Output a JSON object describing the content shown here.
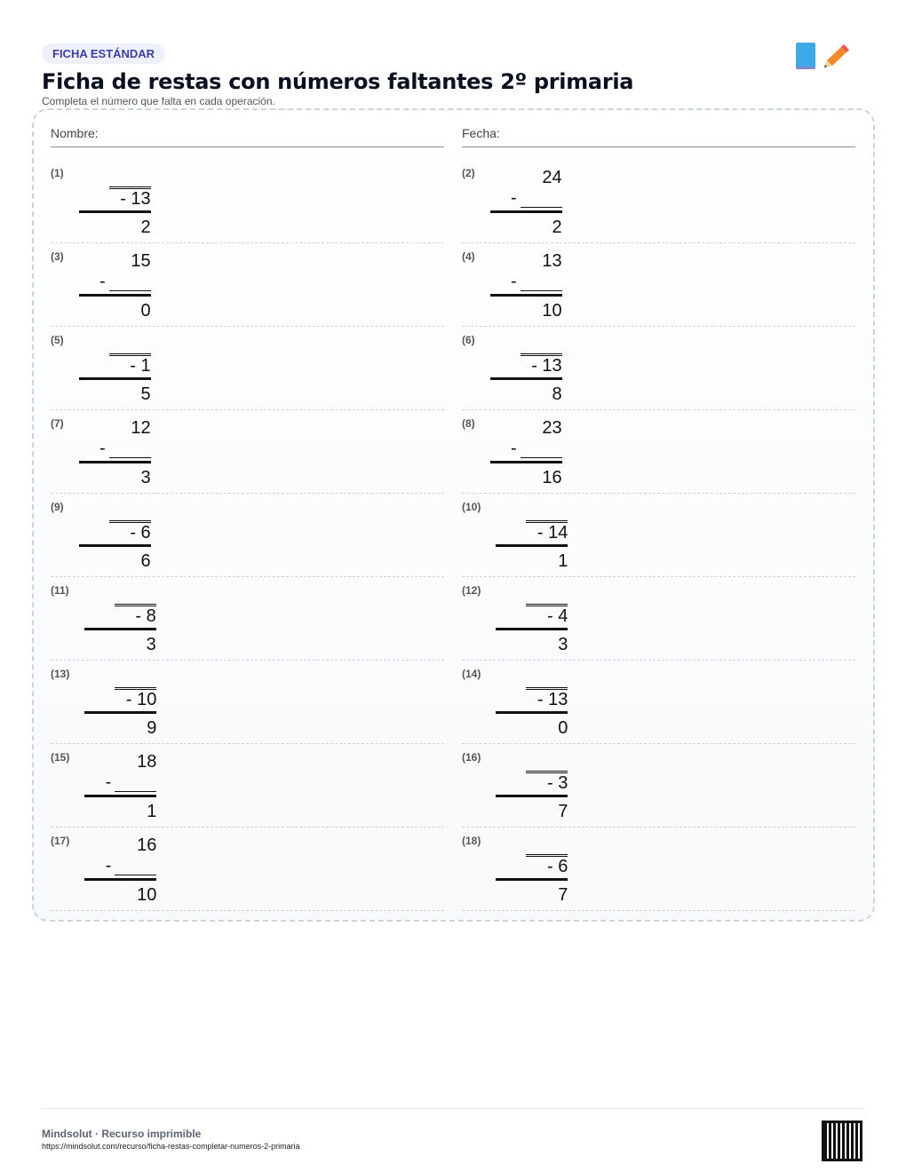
{
  "header": {
    "badge": "FICHA ESTÁNDAR",
    "title": "Ficha de restas con números faltantes 2º primaria",
    "subtitle": "Completa el número que falta en cada operación.",
    "icons": [
      "book-icon",
      "pencil-icon"
    ]
  },
  "fields": {
    "name_label": "Nombre:",
    "date_label": "Fecha:"
  },
  "problems": [
    {
      "label": "(1)",
      "top": null,
      "sub": "13",
      "res": "2"
    },
    {
      "label": "(2)",
      "top": "24",
      "sub": null,
      "res": "2"
    },
    {
      "label": "(3)",
      "top": "15",
      "sub": null,
      "res": "0"
    },
    {
      "label": "(4)",
      "top": "13",
      "sub": null,
      "res": "10"
    },
    {
      "label": "(5)",
      "top": null,
      "sub": "1",
      "res": "5"
    },
    {
      "label": "(6)",
      "top": null,
      "sub": "13",
      "res": "8"
    },
    {
      "label": "(7)",
      "top": "12",
      "sub": null,
      "res": "3"
    },
    {
      "label": "(8)",
      "top": "23",
      "sub": null,
      "res": "16"
    },
    {
      "label": "(9)",
      "top": null,
      "sub": "6",
      "res": "6"
    },
    {
      "label": "(10)",
      "top": null,
      "sub": "14",
      "res": "1"
    },
    {
      "label": "(11)",
      "top": null,
      "sub": "8",
      "res": "3"
    },
    {
      "label": "(12)",
      "top": null,
      "sub": "4",
      "res": "3"
    },
    {
      "label": "(13)",
      "top": null,
      "sub": "10",
      "res": "9"
    },
    {
      "label": "(14)",
      "top": null,
      "sub": "13",
      "res": "0"
    },
    {
      "label": "(15)",
      "top": "18",
      "sub": null,
      "res": "1"
    },
    {
      "label": "(16)",
      "top": null,
      "sub": "3",
      "res": "7"
    },
    {
      "label": "(17)",
      "top": "16",
      "sub": null,
      "res": "10"
    },
    {
      "label": "(18)",
      "top": null,
      "sub": "6",
      "res": "7"
    }
  ],
  "footer": {
    "brand": "Mindsolut · Recurso imprimible",
    "url": "https://mindsolut.com/recurso/ficha-restas-completar-numeros-2-primaria"
  }
}
